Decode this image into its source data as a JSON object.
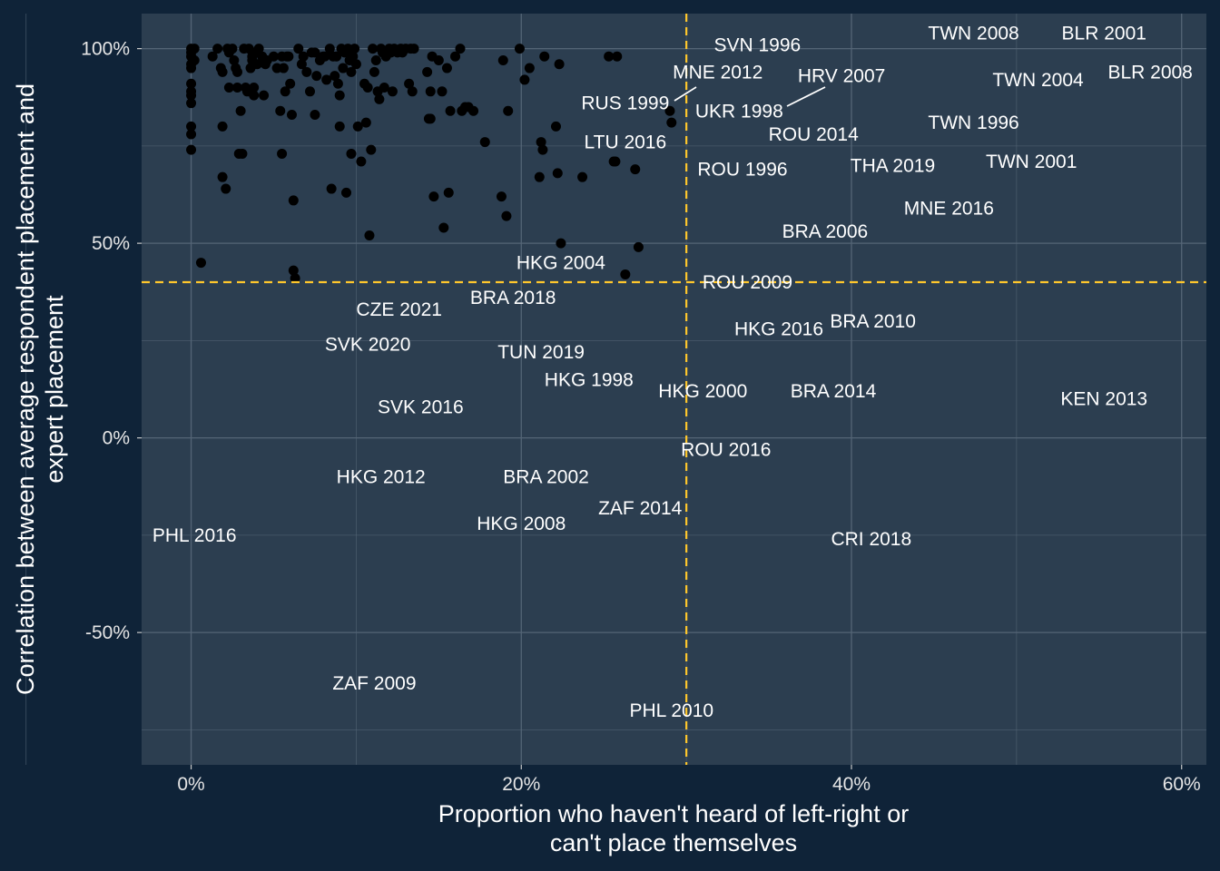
{
  "chart_data": {
    "type": "scatter",
    "title": "",
    "xlabel": [
      "Proportion who haven't heard of left-right or",
      "can't place themselves"
    ],
    "ylabel": [
      "Correlation between average respondent placement and",
      "expert placement"
    ],
    "xlim": [
      -0.03,
      0.615
    ],
    "ylim": [
      -0.84,
      1.09
    ],
    "x_ticks": [
      0,
      0.2,
      0.4,
      0.6
    ],
    "x_tick_labels": [
      "0%",
      "20%",
      "40%",
      "60%"
    ],
    "y_ticks": [
      -0.5,
      0,
      0.5,
      1.0
    ],
    "y_tick_labels": [
      "-50%",
      "0%",
      "50%",
      "100%"
    ],
    "grid": true,
    "reference_lines": {
      "x": 0.3,
      "y": 0.4,
      "color": "#ffc72c",
      "style": "dashed"
    },
    "colors": {
      "background": "#0f2338",
      "panel": "#2c3e50",
      "grid": "#546576",
      "points": "#000000",
      "labels": "#ffffff",
      "reference": "#ffc72c"
    },
    "unlabeled_points": [
      [
        0.0,
        1.0
      ],
      [
        0.0,
        0.99
      ],
      [
        0.0,
        0.98
      ],
      [
        0.0,
        0.96
      ],
      [
        0.0,
        0.95
      ],
      [
        0.0,
        0.91
      ],
      [
        0.0,
        0.89
      ],
      [
        0.0,
        0.88
      ],
      [
        0.0,
        0.86
      ],
      [
        0.0,
        0.8
      ],
      [
        0.0,
        0.78
      ],
      [
        0.0,
        0.74
      ],
      [
        0.002,
        1.0
      ],
      [
        0.002,
        0.97
      ],
      [
        0.006,
        0.45
      ],
      [
        0.013,
        0.98
      ],
      [
        0.016,
        1.0
      ],
      [
        0.018,
        0.95
      ],
      [
        0.019,
        0.94
      ],
      [
        0.019,
        0.8
      ],
      [
        0.019,
        0.67
      ],
      [
        0.021,
        0.64
      ],
      [
        0.022,
        1.0
      ],
      [
        0.023,
        0.99
      ],
      [
        0.023,
        0.9
      ],
      [
        0.025,
        1.0
      ],
      [
        0.026,
        0.97
      ],
      [
        0.027,
        0.95
      ],
      [
        0.028,
        0.94
      ],
      [
        0.028,
        0.9
      ],
      [
        0.029,
        0.73
      ],
      [
        0.03,
        0.84
      ],
      [
        0.031,
        0.73
      ],
      [
        0.032,
        1.0
      ],
      [
        0.033,
        0.9
      ],
      [
        0.034,
        0.89
      ],
      [
        0.035,
        1.0
      ],
      [
        0.036,
        0.95
      ],
      [
        0.037,
        0.98
      ],
      [
        0.037,
        0.97
      ],
      [
        0.038,
        0.9
      ],
      [
        0.038,
        0.88
      ],
      [
        0.039,
        0.99
      ],
      [
        0.04,
        0.96
      ],
      [
        0.041,
        1.0
      ],
      [
        0.043,
        0.98
      ],
      [
        0.044,
        0.88
      ],
      [
        0.045,
        0.96
      ],
      [
        0.046,
        0.97
      ],
      [
        0.05,
        0.98
      ],
      [
        0.052,
        0.95
      ],
      [
        0.054,
        0.84
      ],
      [
        0.055,
        0.73
      ],
      [
        0.055,
        0.98
      ],
      [
        0.056,
        0.95
      ],
      [
        0.057,
        0.89
      ],
      [
        0.058,
        0.98
      ],
      [
        0.059,
        0.98
      ],
      [
        0.06,
        0.91
      ],
      [
        0.061,
        0.83
      ],
      [
        0.062,
        0.61
      ],
      [
        0.062,
        0.43
      ],
      [
        0.063,
        0.41
      ],
      [
        0.065,
        1.0
      ],
      [
        0.067,
        0.96
      ],
      [
        0.068,
        0.98
      ],
      [
        0.07,
        0.94
      ],
      [
        0.072,
        0.89
      ],
      [
        0.073,
        0.99
      ],
      [
        0.075,
        0.99
      ],
      [
        0.075,
        0.83
      ],
      [
        0.076,
        0.93
      ],
      [
        0.078,
        0.97
      ],
      [
        0.08,
        0.98
      ],
      [
        0.081,
        0.98
      ],
      [
        0.082,
        0.92
      ],
      [
        0.084,
        1.0
      ],
      [
        0.085,
        0.64
      ],
      [
        0.086,
        0.98
      ],
      [
        0.087,
        0.93
      ],
      [
        0.088,
        0.98
      ],
      [
        0.089,
        0.91
      ],
      [
        0.09,
        0.88
      ],
      [
        0.09,
        0.8
      ],
      [
        0.091,
        1.0
      ],
      [
        0.092,
        0.95
      ],
      [
        0.093,
        0.99
      ],
      [
        0.094,
        0.63
      ],
      [
        0.095,
        1.0
      ],
      [
        0.096,
        0.97
      ],
      [
        0.097,
        0.94
      ],
      [
        0.097,
        0.73
      ],
      [
        0.098,
        0.98
      ],
      [
        0.099,
        1.0
      ],
      [
        0.1,
        0.96
      ],
      [
        0.101,
        0.8
      ],
      [
        0.103,
        0.71
      ],
      [
        0.105,
        0.91
      ],
      [
        0.106,
        0.81
      ],
      [
        0.107,
        0.9
      ],
      [
        0.108,
        0.52
      ],
      [
        0.109,
        0.74
      ],
      [
        0.11,
        1.0
      ],
      [
        0.111,
        0.94
      ],
      [
        0.112,
        0.97
      ],
      [
        0.113,
        0.89
      ],
      [
        0.114,
        0.87
      ],
      [
        0.115,
        1.0
      ],
      [
        0.116,
        0.99
      ],
      [
        0.117,
        0.9
      ],
      [
        0.118,
        0.98
      ],
      [
        0.12,
        1.0
      ],
      [
        0.121,
        0.99
      ],
      [
        0.122,
        0.89
      ],
      [
        0.123,
        1.0
      ],
      [
        0.125,
        0.99
      ],
      [
        0.127,
        1.0
      ],
      [
        0.128,
        0.99
      ],
      [
        0.13,
        1.0
      ],
      [
        0.132,
        0.91
      ],
      [
        0.133,
        1.0
      ],
      [
        0.134,
        0.89
      ],
      [
        0.135,
        1.0
      ],
      [
        0.143,
        0.94
      ],
      [
        0.144,
        0.82
      ],
      [
        0.145,
        0.82
      ],
      [
        0.145,
        0.89
      ],
      [
        0.146,
        0.98
      ],
      [
        0.147,
        0.62
      ],
      [
        0.15,
        0.97
      ],
      [
        0.152,
        0.89
      ],
      [
        0.153,
        0.54
      ],
      [
        0.155,
        0.95
      ],
      [
        0.156,
        0.63
      ],
      [
        0.157,
        0.84
      ],
      [
        0.16,
        0.98
      ],
      [
        0.163,
        1.0
      ],
      [
        0.164,
        0.84
      ],
      [
        0.166,
        0.85
      ],
      [
        0.168,
        0.85
      ],
      [
        0.171,
        0.84
      ],
      [
        0.178,
        0.76
      ],
      [
        0.188,
        0.62
      ],
      [
        0.189,
        0.97
      ],
      [
        0.191,
        0.57
      ],
      [
        0.192,
        0.84
      ],
      [
        0.199,
        1.0
      ],
      [
        0.202,
        0.92
      ],
      [
        0.205,
        0.95
      ],
      [
        0.211,
        0.67
      ],
      [
        0.212,
        0.76
      ],
      [
        0.213,
        0.74
      ],
      [
        0.214,
        0.98
      ],
      [
        0.221,
        0.8
      ],
      [
        0.222,
        0.68
      ],
      [
        0.223,
        0.96
      ],
      [
        0.224,
        0.5
      ],
      [
        0.237,
        0.67
      ],
      [
        0.253,
        0.98
      ],
      [
        0.256,
        0.71
      ],
      [
        0.257,
        0.71
      ],
      [
        0.258,
        0.98
      ],
      [
        0.263,
        0.42
      ],
      [
        0.269,
        0.69
      ],
      [
        0.271,
        0.49
      ],
      [
        0.29,
        0.84
      ],
      [
        0.291,
        0.81
      ]
    ],
    "labeled_points": [
      {
        "label": "SVN 1996",
        "x": 0.343,
        "y": 1.01
      },
      {
        "label": "TWN 2008",
        "x": 0.474,
        "y": 1.04
      },
      {
        "label": "BLR 2001",
        "x": 0.553,
        "y": 1.04
      },
      {
        "label": "MNE 2012",
        "x": 0.319,
        "y": 0.94
      },
      {
        "label": "HRV 2007",
        "x": 0.394,
        "y": 0.93
      },
      {
        "label": "TWN 2004",
        "x": 0.513,
        "y": 0.92
      },
      {
        "label": "BLR 2008",
        "x": 0.581,
        "y": 0.94
      },
      {
        "label": "RUS 1999",
        "x": 0.263,
        "y": 0.86
      },
      {
        "label": "UKR 1998",
        "x": 0.332,
        "y": 0.84
      },
      {
        "label": "TWN 1996",
        "x": 0.474,
        "y": 0.81
      },
      {
        "label": "ROU 2014",
        "x": 0.377,
        "y": 0.78
      },
      {
        "label": "LTU 2016",
        "x": 0.263,
        "y": 0.76
      },
      {
        "label": "ROU 1996",
        "x": 0.334,
        "y": 0.69
      },
      {
        "label": "THA 2019",
        "x": 0.425,
        "y": 0.7
      },
      {
        "label": "TWN 2001",
        "x": 0.509,
        "y": 0.71
      },
      {
        "label": "MNE 2016",
        "x": 0.459,
        "y": 0.59
      },
      {
        "label": "BRA 2006",
        "x": 0.384,
        "y": 0.53
      },
      {
        "label": "HKG 2004",
        "x": 0.224,
        "y": 0.45
      },
      {
        "label": "ROU 2009",
        "x": 0.337,
        "y": 0.4
      },
      {
        "label": "CZE 2021",
        "x": 0.126,
        "y": 0.33
      },
      {
        "label": "BRA 2018",
        "x": 0.195,
        "y": 0.36
      },
      {
        "label": "BRA 2010",
        "x": 0.413,
        "y": 0.3
      },
      {
        "label": "HKG 2016",
        "x": 0.356,
        "y": 0.28
      },
      {
        "label": "SVK 2020",
        "x": 0.107,
        "y": 0.24
      },
      {
        "label": "TUN 2019",
        "x": 0.212,
        "y": 0.22
      },
      {
        "label": "HKG 1998",
        "x": 0.241,
        "y": 0.15
      },
      {
        "label": "HKG 2000",
        "x": 0.31,
        "y": 0.12
      },
      {
        "label": "BRA 2014",
        "x": 0.389,
        "y": 0.12
      },
      {
        "label": "KEN 2013",
        "x": 0.553,
        "y": 0.1
      },
      {
        "label": "SVK 2016",
        "x": 0.139,
        "y": 0.08
      },
      {
        "label": "ROU 2016",
        "x": 0.324,
        "y": -0.03
      },
      {
        "label": "HKG 2012",
        "x": 0.115,
        "y": -0.1
      },
      {
        "label": "BRA 2002",
        "x": 0.215,
        "y": -0.1
      },
      {
        "label": "ZAF 2014",
        "x": 0.272,
        "y": -0.18
      },
      {
        "label": "PHL 2016",
        "x": 0.002,
        "y": -0.25
      },
      {
        "label": "HKG 2008",
        "x": 0.2,
        "y": -0.22
      },
      {
        "label": "CRI 2018",
        "x": 0.412,
        "y": -0.26
      },
      {
        "label": "ZAF 2009",
        "x": 0.111,
        "y": -0.63
      },
      {
        "label": "PHL 2010",
        "x": 0.291,
        "y": -0.7
      }
    ]
  }
}
